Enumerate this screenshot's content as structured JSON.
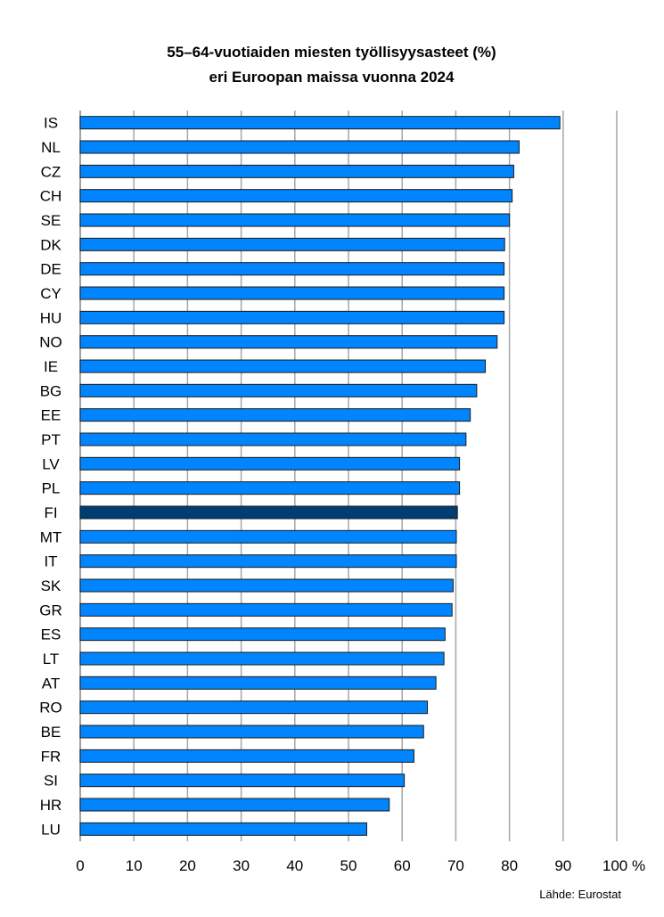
{
  "chart_data": {
    "type": "bar",
    "orientation": "horizontal",
    "title": "55–64-vuotiaiden miesten työllisyysasteet (%)",
    "subtitle": "eri Euroopan maissa vuonna 2024",
    "categories": [
      "IS",
      "NL",
      "CZ",
      "CH",
      "SE",
      "DK",
      "DE",
      "CY",
      "HU",
      "NO",
      "IE",
      "BG",
      "EE",
      "PT",
      "LV",
      "PL",
      "FI",
      "MT",
      "IT",
      "SK",
      "GR",
      "ES",
      "LT",
      "AT",
      "RO",
      "BE",
      "FR",
      "SI",
      "HR",
      "LU"
    ],
    "values": [
      89.4,
      81.8,
      80.8,
      80.5,
      80.0,
      79.1,
      79.0,
      79.0,
      79.0,
      77.7,
      75.5,
      73.9,
      72.7,
      71.9,
      70.7,
      70.7,
      70.3,
      70.1,
      70.1,
      69.5,
      69.3,
      68.0,
      67.8,
      66.3,
      64.7,
      64.0,
      62.2,
      60.4,
      57.6,
      53.4
    ],
    "highlight": "FI",
    "xlim": [
      0,
      100
    ],
    "xticks": [
      "0",
      "10",
      "20",
      "30",
      "40",
      "50",
      "60",
      "70",
      "80",
      "90",
      "100 %"
    ],
    "grid": true,
    "colors": {
      "bar": "#0085FF",
      "highlight": "#003D73",
      "grid": "#A6A6A6"
    },
    "source": "Lähde: Eurostat"
  }
}
